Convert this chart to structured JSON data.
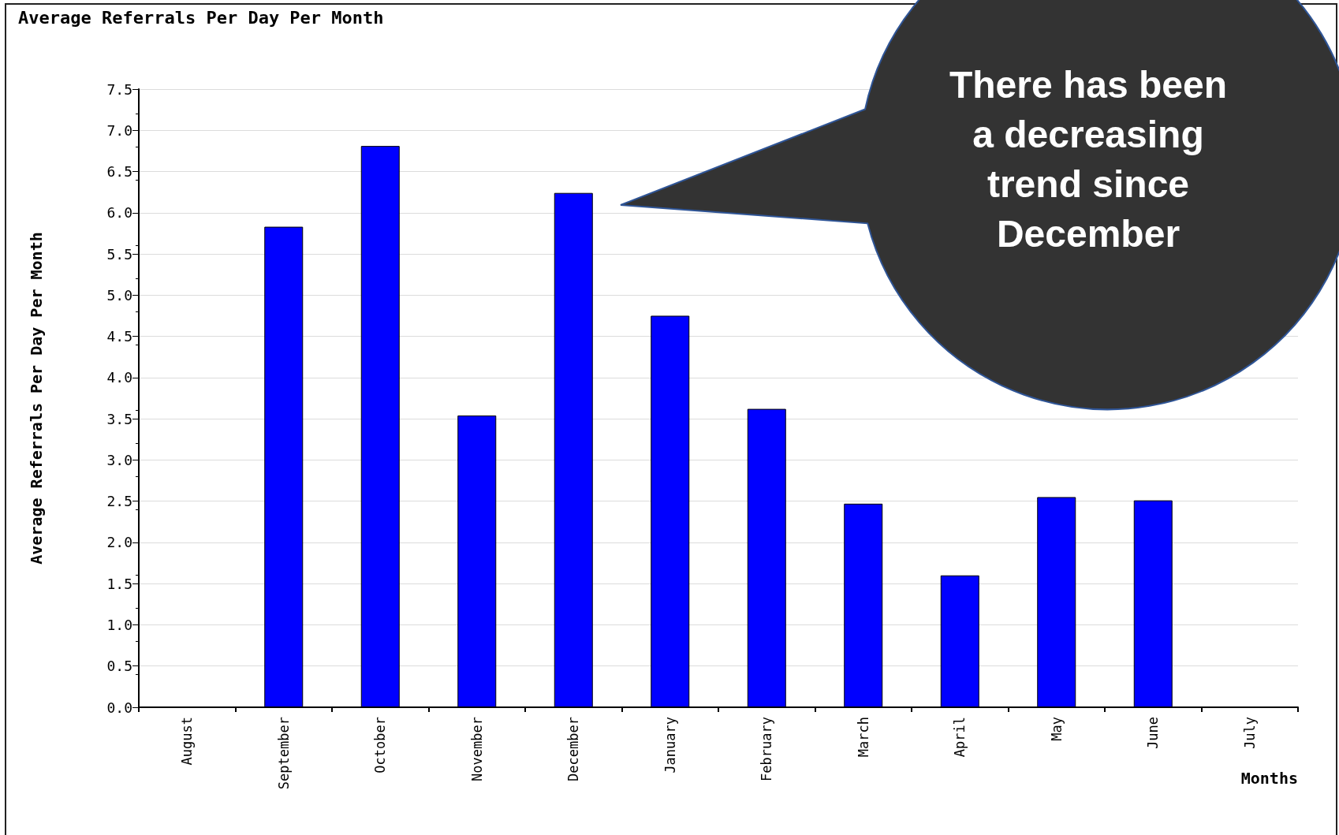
{
  "chart_data": {
    "type": "bar",
    "title": "Average Referrals Per Day Per Month",
    "xlabel": "Months",
    "ylabel": "Average Referrals Per Day Per Month",
    "categories": [
      "August",
      "September",
      "October",
      "November",
      "December",
      "January",
      "February",
      "March",
      "April",
      "May",
      "June",
      "July"
    ],
    "series": [
      {
        "color": "#0000ff",
        "values": [
          null,
          5.83,
          6.81,
          3.54,
          6.24,
          4.75,
          3.62,
          2.47,
          1.6,
          2.55,
          2.51,
          null
        ]
      }
    ],
    "ylim": [
      0,
      7.5
    ],
    "yticks": [
      {
        "value": 0,
        "label": "0.0"
      },
      {
        "value": 0.5,
        "label": "0.5"
      },
      {
        "value": 1,
        "label": "1.0"
      },
      {
        "value": 1.5,
        "label": "1.5"
      },
      {
        "value": 2,
        "label": "2.0"
      },
      {
        "value": 2.5,
        "label": "2.5"
      },
      {
        "value": 3,
        "label": "3.0"
      },
      {
        "value": 3.5,
        "label": "3.5"
      },
      {
        "value": 4,
        "label": "4.0"
      },
      {
        "value": 4.5,
        "label": "4.5"
      },
      {
        "value": 5,
        "label": "5.0"
      },
      {
        "value": 5.5,
        "label": "5.5"
      },
      {
        "value": 6,
        "label": "6.0"
      },
      {
        "value": 6.5,
        "label": "6.5"
      },
      {
        "value": 7,
        "label": "7.0"
      },
      {
        "value": 7.5,
        "label": "7.5"
      }
    ],
    "grid": "y",
    "annotations": [
      "There has been a decreasing trend since December"
    ]
  }
}
